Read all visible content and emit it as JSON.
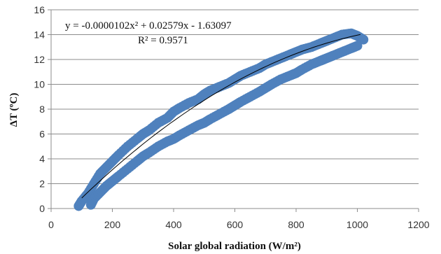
{
  "chart_data": {
    "type": "scatter",
    "title": "",
    "xlabel": "Solar global radiation (W/m²)",
    "ylabel": "ΔT (ºC)",
    "xlim": [
      0,
      1200
    ],
    "ylim": [
      0,
      16
    ],
    "x_ticks": [
      "0",
      "200",
      "400",
      "600",
      "800",
      "1000",
      "1200"
    ],
    "y_ticks": [
      "0",
      "2",
      "4",
      "6",
      "8",
      "10",
      "12",
      "14",
      "16"
    ],
    "grid": true,
    "legend": "none",
    "marker_color": "#4f81bd",
    "trendline_color": "#000000",
    "series": [
      {
        "x": [
          90,
          100,
          120,
          140,
          160,
          180,
          200,
          220,
          250,
          280,
          300,
          320,
          350,
          380,
          400,
          420,
          450,
          480,
          500,
          520,
          550,
          580,
          600,
          620,
          650,
          680,
          700,
          720,
          750,
          780,
          800,
          820,
          850,
          880,
          900,
          920,
          950,
          980,
          1000,
          1020
        ],
        "y": [
          0.2,
          0.6,
          1.2,
          2.0,
          2.8,
          3.3,
          3.8,
          4.3,
          5.0,
          5.6,
          6.0,
          6.3,
          6.9,
          7.3,
          7.8,
          8.1,
          8.5,
          8.8,
          9.2,
          9.5,
          9.8,
          10.1,
          10.4,
          10.7,
          11.0,
          11.3,
          11.6,
          11.8,
          12.1,
          12.4,
          12.6,
          12.8,
          13.0,
          13.3,
          13.5,
          13.7,
          14.0,
          14.1,
          13.9,
          13.6
        ]
      },
      {
        "x": [
          130,
          140,
          160,
          180,
          200,
          220,
          250,
          280,
          300,
          320,
          350,
          380,
          400,
          420,
          450,
          480,
          500,
          520,
          550,
          580,
          600,
          620,
          650,
          680,
          700,
          720,
          750,
          780,
          800,
          820,
          850,
          880,
          900,
          920,
          950,
          980,
          1000
        ],
        "y": [
          0.3,
          0.8,
          1.3,
          1.8,
          2.2,
          2.6,
          3.2,
          3.8,
          4.2,
          4.5,
          5.0,
          5.4,
          5.6,
          5.9,
          6.3,
          6.7,
          6.9,
          7.2,
          7.6,
          8.0,
          8.3,
          8.6,
          9.0,
          9.4,
          9.7,
          10.0,
          10.4,
          10.7,
          10.9,
          11.2,
          11.6,
          11.9,
          12.1,
          12.3,
          12.6,
          12.9,
          13.1
        ]
      }
    ],
    "trendline": {
      "equation": "y = -0.0000102x² + 0.02579x - 1.63097",
      "r_squared": "R² = 0.9571",
      "coefficients": [
        -1.02e-05,
        0.02579,
        -1.63097
      ],
      "x_range": [
        100,
        1010
      ]
    }
  }
}
